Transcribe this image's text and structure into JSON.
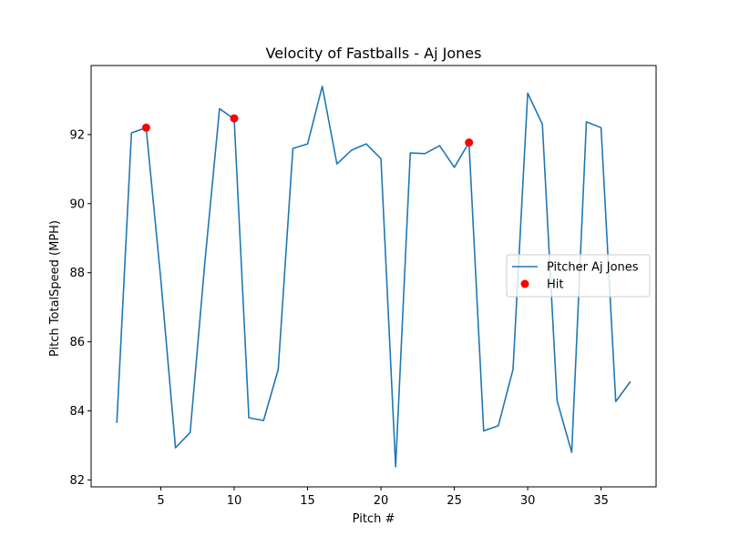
{
  "chart_data": {
    "type": "line",
    "title": "Velocity of Fastballs - Aj Jones",
    "xlabel": "Pitch #",
    "ylabel": "Pitch TotalSpeed (MPH)",
    "xlim": [
      0.25,
      38.75
    ],
    "ylim": [
      81.8,
      94.0
    ],
    "xticks": [
      5,
      10,
      15,
      20,
      25,
      30,
      35
    ],
    "yticks": [
      82,
      84,
      86,
      88,
      90,
      92
    ],
    "grid": false,
    "legend_position": "center-right",
    "series": [
      {
        "name": "Pitcher Aj Jones",
        "kind": "line",
        "color": "#1f77b4",
        "x": [
          2,
          3,
          4,
          5,
          6,
          7,
          8,
          9,
          10,
          11,
          12,
          13,
          14,
          15,
          16,
          17,
          18,
          19,
          20,
          21,
          22,
          23,
          24,
          25,
          26,
          27,
          28,
          29,
          30,
          31,
          32,
          33,
          34,
          35,
          36,
          37
        ],
        "y": [
          83.65,
          92.05,
          92.2,
          87.8,
          82.93,
          83.38,
          88.3,
          92.75,
          92.45,
          83.8,
          83.72,
          85.2,
          91.6,
          91.73,
          93.4,
          91.15,
          91.55,
          91.73,
          91.3,
          82.38,
          91.47,
          91.45,
          91.68,
          91.05,
          91.77,
          83.42,
          83.57,
          85.2,
          93.2,
          92.3,
          84.3,
          82.8,
          92.37,
          92.2,
          84.27,
          84.85
        ]
      },
      {
        "name": "Hit",
        "kind": "scatter",
        "color": "#ff0000",
        "x": [
          4,
          10,
          26
        ],
        "y": [
          92.2,
          92.47,
          91.77
        ]
      }
    ]
  }
}
